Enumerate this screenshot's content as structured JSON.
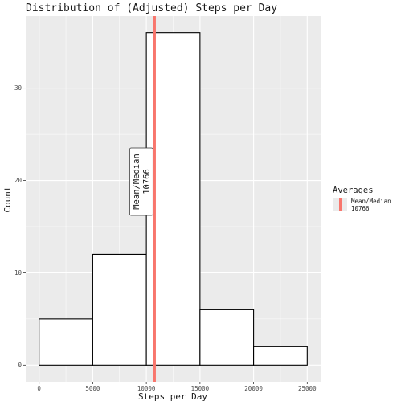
{
  "chart_data": {
    "type": "bar",
    "title": "Distribution of (Adjusted) Steps per Day",
    "xlabel": "Steps per Day",
    "ylabel": "Count",
    "bins": [
      {
        "x0": 0,
        "x1": 5000,
        "count": 5
      },
      {
        "x0": 5000,
        "x1": 10000,
        "count": 12
      },
      {
        "x0": 10000,
        "x1": 15000,
        "count": 36
      },
      {
        "x0": 15000,
        "x1": 20000,
        "count": 6
      },
      {
        "x0": 20000,
        "x1": 25000,
        "count": 2
      }
    ],
    "xlim": [
      -1250,
      26250
    ],
    "ylim": [
      -1.8,
      37.8
    ],
    "x_ticks": [
      0,
      5000,
      10000,
      15000,
      20000,
      25000
    ],
    "x_tick_labels": [
      "0",
      "5000",
      "10000",
      "15000",
      "20000",
      "25000"
    ],
    "y_ticks": [
      0,
      10,
      20,
      30
    ],
    "y_tick_labels": [
      "0",
      "10",
      "20",
      "30"
    ],
    "reference_line": {
      "value": 10766,
      "color": "#f8766d"
    },
    "annotation": {
      "line1": "Mean/Median",
      "line2": "10766"
    },
    "legend": {
      "title": "Averages",
      "label_line1": "Mean/Median",
      "label_line2": "10766",
      "position": "right"
    },
    "colors": {
      "panel": "#ebebeb",
      "grid": "#ffffff",
      "bar_fill": "#ffffff",
      "bar_stroke": "#000000",
      "mean_line": "#f8766d"
    }
  }
}
